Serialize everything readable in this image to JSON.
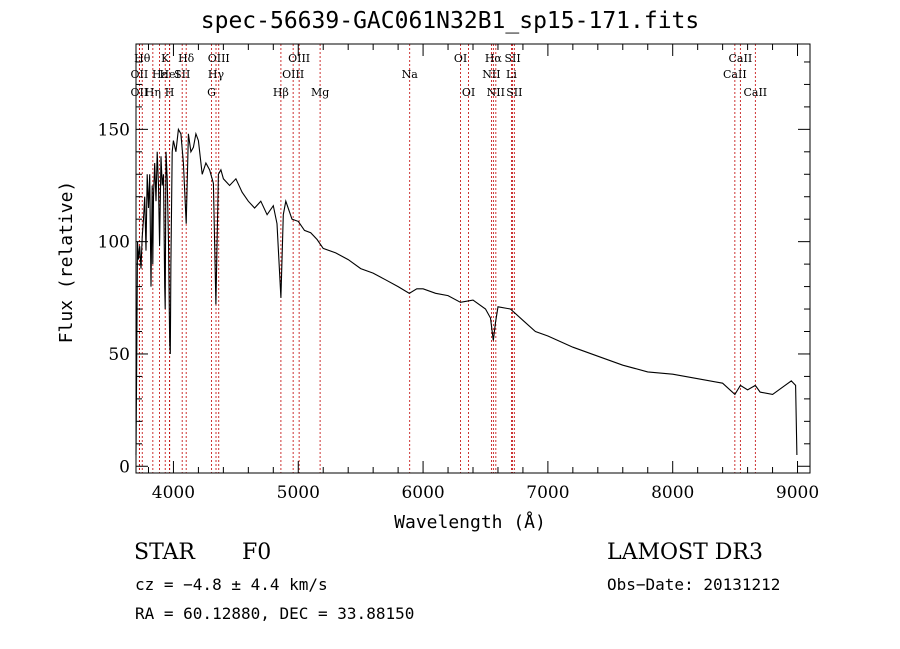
{
  "chart_data": {
    "type": "line",
    "title": "spec-56639-GAC061N32B1_sp15-171.fits",
    "xlabel": "Wavelength (Å)",
    "ylabel": "Flux (relative)",
    "xlim": [
      3700,
      9100
    ],
    "ylim": [
      -3,
      188
    ],
    "xticks": [
      4000,
      5000,
      6000,
      7000,
      8000,
      9000
    ],
    "yticks": [
      0,
      50,
      100,
      150
    ],
    "series": [
      {
        "name": "spectrum",
        "x": [
          3700,
          3705,
          3712,
          3720,
          3730,
          3740,
          3750,
          3760,
          3770,
          3780,
          3790,
          3800,
          3810,
          3820,
          3830,
          3835,
          3840,
          3850,
          3860,
          3870,
          3880,
          3889,
          3900,
          3910,
          3920,
          3930,
          3934,
          3940,
          3950,
          3960,
          3970,
          3975,
          3980,
          3990,
          4000,
          4020,
          4040,
          4060,
          4080,
          4102,
          4120,
          4140,
          4160,
          4180,
          4200,
          4230,
          4260,
          4290,
          4320,
          4340,
          4360,
          4380,
          4400,
          4450,
          4500,
          4550,
          4600,
          4650,
          4700,
          4750,
          4800,
          4830,
          4861,
          4880,
          4900,
          4950,
          5000,
          5050,
          5100,
          5150,
          5200,
          5300,
          5400,
          5500,
          5600,
          5700,
          5800,
          5890,
          5950,
          6000,
          6100,
          6200,
          6300,
          6400,
          6500,
          6540,
          6563,
          6580,
          6600,
          6700,
          6800,
          6900,
          7000,
          7200,
          7400,
          7600,
          7800,
          8000,
          8200,
          8400,
          8498,
          8542,
          8600,
          8662,
          8700,
          8800,
          8900,
          8950,
          8985,
          8995
        ],
        "values": [
          5,
          40,
          100,
          92,
          98,
          88,
          102,
          110,
          120,
          96,
          130,
          115,
          130,
          80,
          125,
          90,
          120,
          135,
          118,
          140,
          125,
          98,
          138,
          125,
          130,
          80,
          70,
          140,
          128,
          100,
          55,
          50,
          90,
          140,
          145,
          140,
          150,
          148,
          135,
          108,
          148,
          140,
          142,
          148,
          145,
          130,
          135,
          132,
          126,
          72,
          130,
          132,
          128,
          125,
          128,
          122,
          118,
          115,
          118,
          112,
          116,
          108,
          75,
          112,
          118,
          110,
          109,
          105,
          104,
          101,
          97,
          95,
          92,
          88,
          86,
          83,
          80,
          77,
          79,
          79,
          77,
          76,
          73,
          74,
          70,
          66,
          56,
          64,
          71,
          70,
          65,
          60,
          58,
          53,
          49,
          45,
          42,
          41,
          39,
          37,
          32,
          36,
          34,
          36,
          33,
          32,
          36,
          38,
          36,
          5
        ]
      }
    ],
    "lines": [
      {
        "label": "OII",
        "x": 3727,
        "row": 2
      },
      {
        "label": "OII",
        "x": 3727,
        "row": 3
      },
      {
        "label": "Hθ",
        "x": 3750,
        "row": 1
      },
      {
        "label": "Hη",
        "x": 3835,
        "row": 3
      },
      {
        "label": "Hε",
        "x": 3889,
        "row": 2
      },
      {
        "label": "K",
        "x": 3934,
        "row": 1
      },
      {
        "label": "HeI",
        "x": 3970,
        "row": 2
      },
      {
        "label": "H",
        "x": 3969,
        "row": 3
      },
      {
        "label": "SII",
        "x": 4070,
        "row": 2
      },
      {
        "label": "Hδ",
        "x": 4102,
        "row": 1
      },
      {
        "label": "OIII",
        "x": 4363,
        "row": 1
      },
      {
        "label": "Hγ",
        "x": 4341,
        "row": 2
      },
      {
        "label": "G",
        "x": 4305,
        "row": 3
      },
      {
        "label": "Hβ",
        "x": 4861,
        "row": 3
      },
      {
        "label": "OIII",
        "x": 4959,
        "row": 2
      },
      {
        "label": "OIII",
        "x": 5007,
        "row": 1
      },
      {
        "label": "Mg",
        "x": 5175,
        "row": 3
      },
      {
        "label": "Na",
        "x": 5893,
        "row": 2
      },
      {
        "label": "OI",
        "x": 6300,
        "row": 1
      },
      {
        "label": "OI",
        "x": 6364,
        "row": 3
      },
      {
        "label": "Hα",
        "x": 6563,
        "row": 1
      },
      {
        "label": "NII",
        "x": 6548,
        "row": 2
      },
      {
        "label": "NII",
        "x": 6583,
        "row": 3
      },
      {
        "label": "SII",
        "x": 6717,
        "row": 1
      },
      {
        "label": "Li",
        "x": 6708,
        "row": 2
      },
      {
        "label": "SII",
        "x": 6731,
        "row": 3
      },
      {
        "label": "CaII",
        "x": 8542,
        "row": 1
      },
      {
        "label": "CaII",
        "x": 8498,
        "row": 2
      },
      {
        "label": "CaII",
        "x": 8662,
        "row": 3
      }
    ]
  },
  "info": {
    "object_class": "STAR",
    "subclass": "F0",
    "survey": "LAMOST DR3",
    "cz": "cz = −4.8 ± 4.4 km/s",
    "obs_date": "Obs−Date: 20131212",
    "coords": "RA =  60.12880, DEC =  33.88150"
  }
}
